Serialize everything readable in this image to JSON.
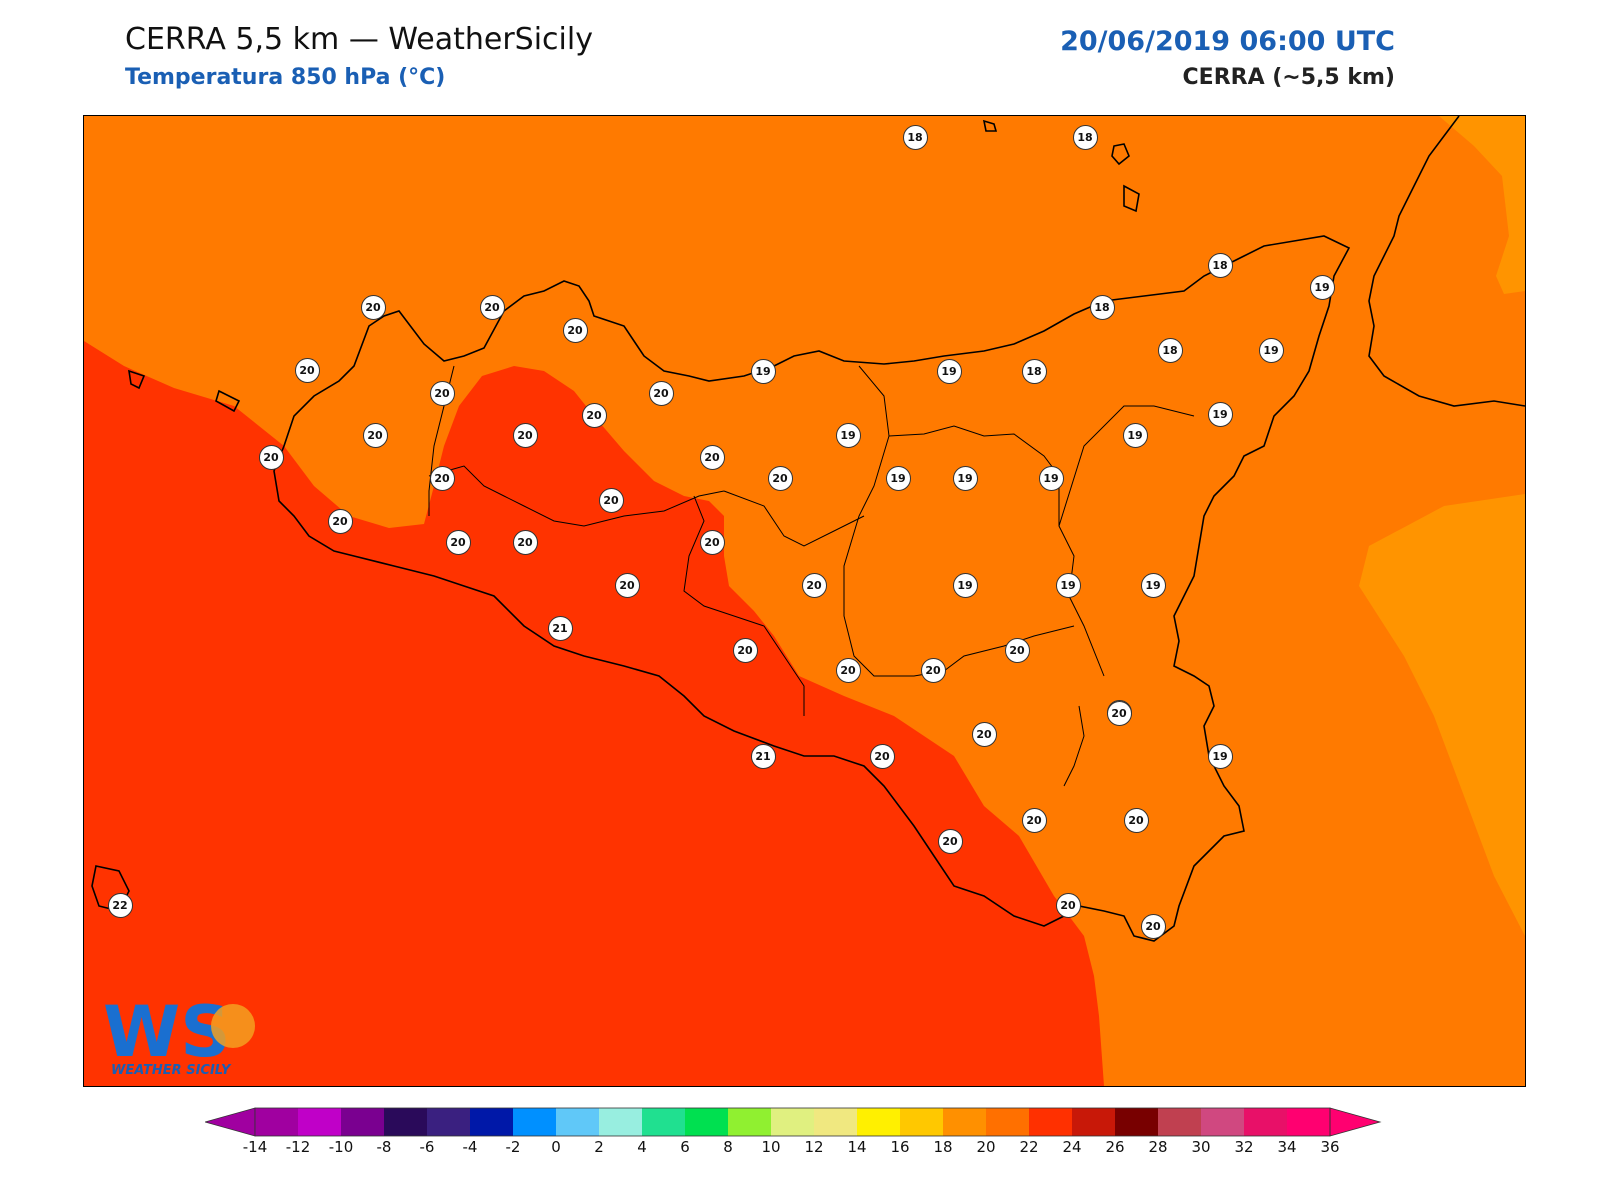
{
  "header": {
    "title": "CERRA 5,5 km — WeatherSicily",
    "subtitle": "Temperatura 850 hPa (°C)",
    "datetime": "20/06/2019 06:00 UTC",
    "model": "CERRA (~5,5 km)"
  },
  "logo": {
    "text": "WEATHER SICILY",
    "letters": "WS"
  },
  "colorbar": {
    "min": -14,
    "max": 36,
    "step": 2,
    "ticks": [
      "-14",
      "-12",
      "-10",
      "-8",
      "-6",
      "-4",
      "-2",
      "0",
      "2",
      "4",
      "6",
      "8",
      "10",
      "12",
      "14",
      "16",
      "18",
      "20",
      "22",
      "24",
      "26",
      "28",
      "30",
      "32",
      "34",
      "36"
    ],
    "colors": [
      "#a000a0",
      "#c000c8",
      "#7a0090",
      "#2a0a5a",
      "#3a2080",
      "#0018a8",
      "#0090ff",
      "#60c8f8",
      "#98eee0",
      "#20e090",
      "#00e050",
      "#90f030",
      "#e0f080",
      "#f0e880",
      "#fff000",
      "#ffc800",
      "#ff9000",
      "#ff7000",
      "#ff3000",
      "#c81808",
      "#780000",
      "#c04050",
      "#d04880",
      "#e81068",
      "#ff0070"
    ],
    "under_color": "#a000a0",
    "over_color": "#ff0070"
  },
  "field_colors": {
    "t18_20": "#ff7a00",
    "t20_22": "#ff3300",
    "t16_18": "#ff9400"
  },
  "stations": [
    {
      "v": "18"
    },
    {
      "v": "18"
    },
    {
      "v": "18"
    },
    {
      "v": "19"
    },
    {
      "v": "18"
    },
    {
      "v": "18"
    },
    {
      "v": "19"
    },
    {
      "v": "20"
    },
    {
      "v": "20"
    },
    {
      "v": "20"
    },
    {
      "v": "20"
    },
    {
      "v": "20"
    },
    {
      "v": "20"
    },
    {
      "v": "19"
    },
    {
      "v": "19"
    },
    {
      "v": "18"
    },
    {
      "v": "20"
    },
    {
      "v": "20"
    },
    {
      "v": "20"
    },
    {
      "v": "19"
    },
    {
      "v": "19"
    },
    {
      "v": "20"
    },
    {
      "v": "20"
    },
    {
      "v": "20"
    },
    {
      "v": "19"
    },
    {
      "v": "19"
    },
    {
      "v": "19"
    },
    {
      "v": "19"
    },
    {
      "v": "20"
    },
    {
      "v": "20"
    },
    {
      "v": "20"
    },
    {
      "v": "20"
    },
    {
      "v": "20"
    },
    {
      "v": "20"
    },
    {
      "v": "20"
    },
    {
      "v": "20"
    },
    {
      "v": "19"
    },
    {
      "v": "19"
    },
    {
      "v": "19"
    },
    {
      "v": "21"
    },
    {
      "v": "20"
    },
    {
      "v": "20"
    },
    {
      "v": "20"
    },
    {
      "v": "20"
    },
    {
      "v": "20"
    },
    {
      "v": "20"
    },
    {
      "v": "19"
    },
    {
      "v": "21"
    },
    {
      "v": "20"
    },
    {
      "v": "20"
    },
    {
      "v": "20"
    },
    {
      "v": "20"
    },
    {
      "v": "20"
    },
    {
      "v": "20"
    },
    {
      "v": "20"
    },
    {
      "v": "22"
    }
  ]
}
